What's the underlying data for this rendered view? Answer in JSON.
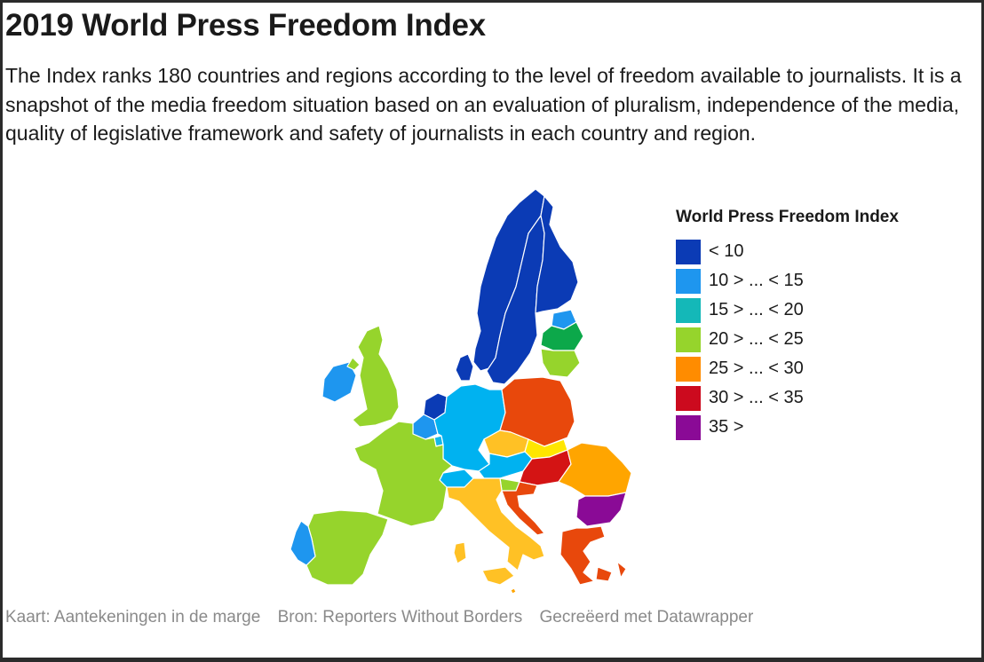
{
  "title": "2019 World Press Freedom Index",
  "description": "The Index ranks 180 countries and regions according to the level of freedom available to journalists. It is a snapshot of the media freedom situation based on an evaluation of pluralism, independence of the media, quality of legislative framework and safety of journalists in each country and region.",
  "legend": {
    "title": "World Press Freedom Index",
    "items": [
      {
        "label": "< 10",
        "color": "#0b3bb5"
      },
      {
        "label": "10 > ... < 15",
        "color": "#1e96ef"
      },
      {
        "label": "15 > ... < 20",
        "color": "#14b8b8"
      },
      {
        "label": "20 > ... < 25",
        "color": "#96d42c"
      },
      {
        "label": "25 > ... < 30",
        "color": "#ff8c00"
      },
      {
        "label": "30 > ... < 35",
        "color": "#cc0a1e"
      },
      {
        "label": "35 >",
        "color": "#8a0a96"
      }
    ]
  },
  "footer": {
    "map_credit": "Kaart: Aantekeningen in de marge",
    "source": "Bron: Reporters Without Borders",
    "made_with": "Gecreëerd met Datawrapper"
  },
  "map_fills": {
    "norway": "#0b3bb5",
    "sweden": "#0b3bb5",
    "finland": "#0b3bb5",
    "denmark": "#0b3bb5",
    "netherlands": "#0b3bb5",
    "estonia": "#1e96ef",
    "latvia": "#0ca84a",
    "lithuania": "#96d42c",
    "ireland": "#1e96ef",
    "uk": "#96d42c",
    "belgium": "#1e96ef",
    "luxembourg": "#14b8e8",
    "germany": "#00b2f0",
    "austria": "#00b2f0",
    "switzerland": "#00b2f0",
    "portugal": "#1e96ef",
    "spain": "#96d42c",
    "france": "#96d42c",
    "italy": "#ffc125",
    "slovenia": "#96d42c",
    "croatia": "#e8480c",
    "poland": "#e8480c",
    "czech": "#ffc125",
    "slovakia": "#ffe600",
    "hungary": "#d41414",
    "romania": "#ffa500",
    "bulgaria": "#8a0a96",
    "greece": "#e8480c",
    "cyprus": "#96d42c",
    "malta": "#ffa500"
  }
}
